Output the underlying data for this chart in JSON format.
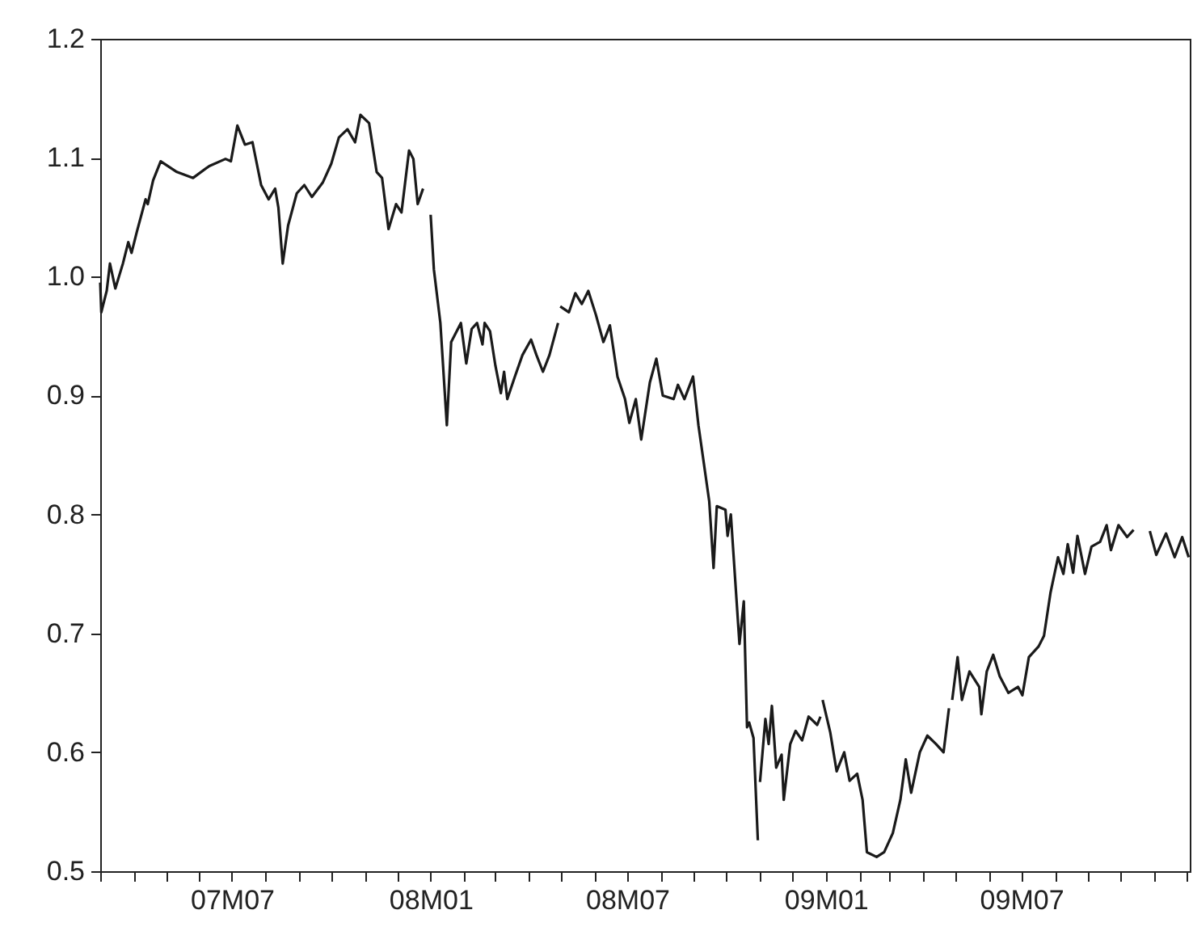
{
  "chart_data": {
    "type": "line",
    "x": [
      "2007-03-01",
      "2007-03-02",
      "2007-03-07",
      "2007-03-10",
      "2007-03-15",
      "2007-03-22",
      "2007-03-27",
      "2007-03-30",
      "2007-04-04",
      "2007-04-12",
      "2007-04-14",
      "2007-04-19",
      "2007-04-26",
      "2007-05-11",
      "2007-05-26",
      "2007-06-10",
      "2007-06-25",
      "2007-06-30",
      "2007-07-06",
      "2007-07-13",
      "2007-07-20",
      "2007-07-28",
      "2007-08-04",
      "2007-08-10",
      "2007-08-13",
      "2007-08-17",
      "2007-08-22",
      "2007-08-30",
      "2007-09-06",
      "2007-09-13",
      "2007-09-23",
      "2007-10-01",
      "2007-10-08",
      "2007-10-16",
      "2007-10-23",
      "2007-10-28",
      "2007-11-05",
      "2007-11-12",
      "2007-11-17",
      "2007-11-23",
      "2007-11-30",
      "2007-12-05",
      "2007-12-12",
      "2007-12-16",
      "2007-12-20",
      "2007-12-25",
      "2007-12-28",
      "2008-01-01",
      "2008-01-04",
      "2008-01-10",
      "2008-01-16",
      "2008-01-20",
      "2008-01-29",
      "2008-02-03",
      "2008-02-08",
      "2008-02-13",
      "2008-02-18",
      "2008-02-20",
      "2008-02-25",
      "2008-03-01",
      "2008-03-06",
      "2008-03-09",
      "2008-03-12",
      "2008-03-19",
      "2008-03-26",
      "2008-04-03",
      "2008-04-08",
      "2008-04-14",
      "2008-04-20",
      "2008-04-28",
      "2008-04-29",
      "2008-04-30",
      "2008-05-08",
      "2008-05-14",
      "2008-05-20",
      "2008-05-26",
      "2008-06-02",
      "2008-06-09",
      "2008-06-15",
      "2008-06-22",
      "2008-06-29",
      "2008-07-03",
      "2008-07-09",
      "2008-07-14",
      "2008-07-22",
      "2008-07-28",
      "2008-08-03",
      "2008-08-13",
      "2008-08-17",
      "2008-08-23",
      "2008-08-31",
      "2008-09-05",
      "2008-09-10",
      "2008-09-15",
      "2008-09-19",
      "2008-09-22",
      "2008-09-30",
      "2008-10-02",
      "2008-10-05",
      "2008-10-11",
      "2008-10-13",
      "2008-10-17",
      "2008-10-20",
      "2008-10-22",
      "2008-10-26",
      "2008-10-30",
      "2008-10-31",
      "2008-11-01",
      "2008-11-06",
      "2008-11-09",
      "2008-11-12",
      "2008-11-16",
      "2008-11-21",
      "2008-11-23",
      "2008-11-29",
      "2008-12-04",
      "2008-12-10",
      "2008-12-16",
      "2008-12-24",
      "2008-12-27",
      "2008-12-28",
      "2008-12-29",
      "2009-01-05",
      "2009-01-11",
      "2009-01-18",
      "2009-01-23",
      "2009-01-30",
      "2009-02-04",
      "2009-02-08",
      "2009-02-17",
      "2009-02-24",
      "2009-03-04",
      "2009-03-11",
      "2009-03-16",
      "2009-03-21",
      "2009-03-29",
      "2009-04-05",
      "2009-04-13",
      "2009-04-20",
      "2009-04-25",
      "2009-04-27",
      "2009-04-28",
      "2009-05-03",
      "2009-05-07",
      "2009-05-14",
      "2009-05-23",
      "2009-05-25",
      "2009-05-30",
      "2009-06-05",
      "2009-06-11",
      "2009-06-19",
      "2009-06-28",
      "2009-07-02",
      "2009-07-08",
      "2009-07-17",
      "2009-07-22",
      "2009-07-28",
      "2009-08-04",
      "2009-08-09",
      "2009-08-13",
      "2009-08-18",
      "2009-08-22",
      "2009-08-29",
      "2009-09-04",
      "2009-09-12",
      "2009-09-18",
      "2009-09-22",
      "2009-09-29",
      "2009-10-07",
      "2009-10-13",
      "2009-10-20",
      "2009-10-28",
      "2009-11-03",
      "2009-11-12",
      "2009-11-20",
      "2009-11-27",
      "2009-12-03"
    ],
    "series": [
      {
        "color": "#1a1a1a",
        "values": [
          0.995,
          0.97,
          0.988,
          1.011,
          0.99,
          1.011,
          1.029,
          1.02,
          1.038,
          1.065,
          1.061,
          1.081,
          1.097,
          1.088,
          1.083,
          1.093,
          1.099,
          1.097,
          1.127,
          1.111,
          1.113,
          1.077,
          1.065,
          1.074,
          1.058,
          1.011,
          1.043,
          1.07,
          1.077,
          1.067,
          1.079,
          1.095,
          1.117,
          1.124,
          1.113,
          1.136,
          1.129,
          1.088,
          1.083,
          1.04,
          1.061,
          1.054,
          1.106,
          1.099,
          1.061,
          1.074,
          null,
          1.052,
          1.006,
          0.961,
          0.875,
          0.945,
          0.961,
          0.927,
          0.956,
          0.961,
          0.943,
          0.961,
          0.954,
          0.925,
          0.902,
          0.92,
          0.897,
          0.916,
          0.934,
          0.947,
          0.934,
          0.92,
          0.934,
          0.961,
          null,
          0.975,
          0.97,
          0.986,
          0.977,
          0.988,
          0.968,
          0.945,
          0.959,
          0.916,
          0.897,
          0.877,
          0.897,
          0.863,
          0.911,
          0.931,
          0.9,
          0.897,
          0.909,
          0.897,
          0.916,
          0.875,
          0.843,
          0.811,
          0.755,
          0.807,
          0.804,
          0.782,
          0.8,
          0.718,
          0.691,
          0.727,
          0.621,
          0.625,
          0.612,
          0.526,
          null,
          0.575,
          0.628,
          0.607,
          0.639,
          0.587,
          0.598,
          0.56,
          0.607,
          0.618,
          0.61,
          0.63,
          0.623,
          0.63,
          null,
          0.644,
          0.617,
          0.584,
          0.6,
          0.576,
          0.582,
          0.56,
          0.516,
          0.512,
          0.516,
          0.532,
          0.56,
          0.594,
          0.566,
          0.6,
          0.614,
          0.607,
          0.6,
          0.637,
          null,
          0.644,
          0.68,
          0.644,
          0.668,
          0.655,
          0.632,
          0.668,
          0.682,
          0.664,
          0.65,
          0.655,
          0.648,
          0.68,
          0.689,
          0.698,
          0.734,
          0.764,
          0.75,
          0.775,
          0.751,
          0.782,
          0.75,
          0.773,
          0.777,
          0.791,
          0.77,
          0.791,
          0.781,
          0.787,
          null,
          0.786,
          0.766,
          0.784,
          0.764,
          0.781,
          0.764
        ]
      }
    ],
    "xlim": [
      "2007-03-01",
      "2009-12-04"
    ],
    "xticks": [
      {
        "value": "2007-03-01",
        "label": null
      },
      {
        "value": "2007-04-01",
        "label": null
      },
      {
        "value": "2007-05-01",
        "label": null
      },
      {
        "value": "2007-06-01",
        "label": null
      },
      {
        "value": "2007-07-01",
        "label": "07M07"
      },
      {
        "value": "2007-08-01",
        "label": null
      },
      {
        "value": "2007-09-01",
        "label": null
      },
      {
        "value": "2007-10-01",
        "label": null
      },
      {
        "value": "2007-11-01",
        "label": null
      },
      {
        "value": "2007-12-01",
        "label": null
      },
      {
        "value": "2008-01-01",
        "label": "08M01"
      },
      {
        "value": "2008-02-01",
        "label": null
      },
      {
        "value": "2008-03-01",
        "label": null
      },
      {
        "value": "2008-04-01",
        "label": null
      },
      {
        "value": "2008-05-01",
        "label": null
      },
      {
        "value": "2008-06-01",
        "label": null
      },
      {
        "value": "2008-07-01",
        "label": "08M07"
      },
      {
        "value": "2008-08-01",
        "label": null
      },
      {
        "value": "2008-09-01",
        "label": null
      },
      {
        "value": "2008-10-01",
        "label": null
      },
      {
        "value": "2008-11-01",
        "label": null
      },
      {
        "value": "2008-12-01",
        "label": null
      },
      {
        "value": "2009-01-01",
        "label": "09M01"
      },
      {
        "value": "2009-02-01",
        "label": null
      },
      {
        "value": "2009-03-01",
        "label": null
      },
      {
        "value": "2009-04-01",
        "label": null
      },
      {
        "value": "2009-05-01",
        "label": null
      },
      {
        "value": "2009-06-01",
        "label": null
      },
      {
        "value": "2009-07-01",
        "label": "09M07"
      },
      {
        "value": "2009-08-01",
        "label": null
      },
      {
        "value": "2009-09-01",
        "label": null
      },
      {
        "value": "2009-10-01",
        "label": null
      },
      {
        "value": "2009-11-01",
        "label": null
      },
      {
        "value": "2009-12-01",
        "label": null
      }
    ],
    "ylim": [
      0.5,
      1.2
    ],
    "yticks": [
      {
        "value": 0.5,
        "label": "0.5"
      },
      {
        "value": 0.6,
        "label": "0.6"
      },
      {
        "value": 0.7,
        "label": "0.7"
      },
      {
        "value": 0.8,
        "label": "0.8"
      },
      {
        "value": 0.9,
        "label": "0.9"
      },
      {
        "value": 1.0,
        "label": "1.0"
      },
      {
        "value": 1.1,
        "label": "1.1"
      },
      {
        "value": 1.2,
        "label": "1.2"
      }
    ],
    "grid": false,
    "legend": false,
    "marker": "none",
    "line_style": "solid"
  }
}
